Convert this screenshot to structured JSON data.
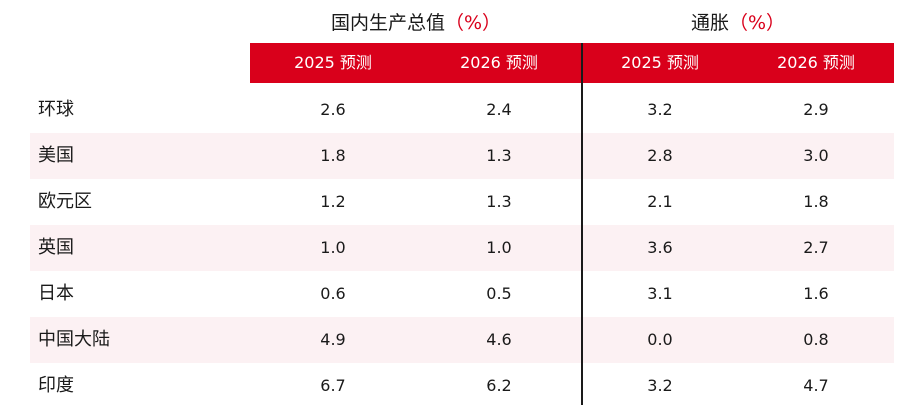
{
  "headers": {
    "gdp_group": "国内生产总值",
    "gdp_unit": "（%）",
    "inflation_group": "通胀",
    "inflation_unit": "（%）",
    "columns": [
      "2025 预测",
      "2026 预测",
      "2025 预测",
      "2026 预测"
    ]
  },
  "rows": [
    {
      "region": "环球",
      "gdp_2025": "2.6",
      "gdp_2026": "2.4",
      "inf_2025": "3.2",
      "inf_2026": "2.9"
    },
    {
      "region": "美国",
      "gdp_2025": "1.8",
      "gdp_2026": "1.3",
      "inf_2025": "2.8",
      "inf_2026": "3.0"
    },
    {
      "region": "欧元区",
      "gdp_2025": "1.2",
      "gdp_2026": "1.3",
      "inf_2025": "2.1",
      "inf_2026": "1.8"
    },
    {
      "region": "英国",
      "gdp_2025": "1.0",
      "gdp_2026": "1.0",
      "inf_2025": "3.6",
      "inf_2026": "2.7"
    },
    {
      "region": "日本",
      "gdp_2025": "0.6",
      "gdp_2026": "0.5",
      "inf_2025": "3.1",
      "inf_2026": "1.6"
    },
    {
      "region": "中国大陆",
      "gdp_2025": "4.9",
      "gdp_2026": "4.6",
      "inf_2025": "0.0",
      "inf_2026": "0.8"
    },
    {
      "region": "印度",
      "gdp_2025": "6.7",
      "gdp_2026": "6.2",
      "inf_2025": "3.2",
      "inf_2026": "4.7"
    }
  ],
  "colors": {
    "accent_red": "#d9001b",
    "row_shade": "#fcf1f3",
    "text": "#1a1a1a"
  }
}
